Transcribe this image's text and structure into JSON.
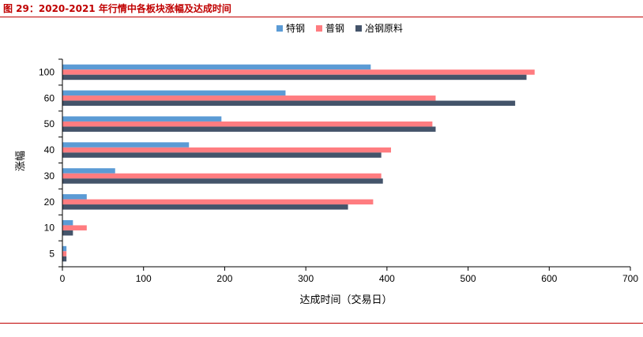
{
  "figure": {
    "title": "图 29：2020-2021 年行情中各板块涨幅及达成时间"
  },
  "chart_data": {
    "type": "bar",
    "orientation": "horizontal",
    "categories": [
      "100",
      "60",
      "50",
      "40",
      "30",
      "20",
      "10",
      "5"
    ],
    "series": [
      {
        "name": "特钢",
        "color": "#5b9bd5",
        "values": [
          380,
          275,
          196,
          156,
          65,
          30,
          13,
          5
        ]
      },
      {
        "name": "普钢",
        "color": "#ff7c80",
        "values": [
          582,
          460,
          456,
          405,
          393,
          383,
          30,
          5
        ]
      },
      {
        "name": "冶钢原料",
        "color": "#44546a",
        "values": [
          572,
          558,
          460,
          393,
          395,
          352,
          13,
          5
        ]
      }
    ],
    "xlabel": "达成时间（交易日）",
    "ylabel": "涨幅",
    "xlim": [
      0,
      700
    ],
    "xticks": [
      "0",
      "100",
      "200",
      "300",
      "400",
      "500",
      "600",
      "700"
    ],
    "legend_position": "top-center",
    "grid": false
  }
}
